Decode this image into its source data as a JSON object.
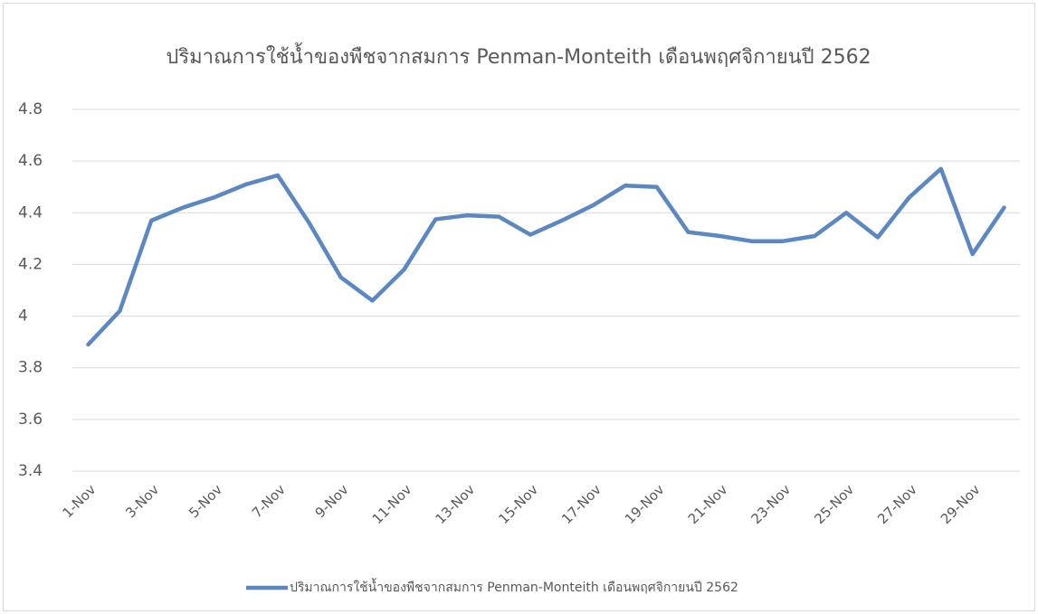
{
  "chart_data": {
    "type": "line",
    "title": "ปริมาณการใช้น้ำของพืชจากสมการ Penman-Monteith เดือนพฤศจิกายนปี 2562",
    "categories": [
      "1-Nov",
      null,
      "3-Nov",
      null,
      "5-Nov",
      null,
      "7-Nov",
      null,
      "9-Nov",
      null,
      "11-Nov",
      null,
      "13-Nov",
      null,
      "15-Nov",
      null,
      "17-Nov",
      null,
      "19-Nov",
      null,
      "21-Nov",
      null,
      "23-Nov",
      null,
      "25-Nov",
      null,
      "27-Nov",
      null,
      "29-Nov",
      null
    ],
    "series": [
      {
        "name": "ปริมาณการใช้น้ำของพืชจากสมการ Penman-Monteith เดือนพฤศจิกายนปี 2562",
        "color": "#5b87c2",
        "values": [
          3.89,
          4.02,
          4.37,
          4.42,
          4.46,
          4.51,
          4.545,
          4.36,
          4.15,
          4.06,
          4.18,
          4.375,
          4.39,
          4.385,
          4.315,
          4.37,
          4.43,
          4.505,
          4.5,
          4.325,
          4.31,
          4.29,
          4.29,
          4.31,
          4.4,
          4.305,
          4.46,
          4.57,
          4.24,
          4.42
        ]
      }
    ],
    "ylim": [
      3.4,
      4.8
    ],
    "yticks": [
      3.4,
      3.6,
      3.8,
      4,
      4.2,
      4.4,
      4.6,
      4.8
    ],
    "grid": true,
    "legend": "bottom"
  }
}
